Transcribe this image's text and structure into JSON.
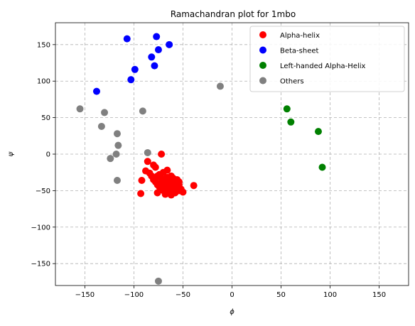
{
  "chart_data": {
    "type": "scatter",
    "title": "Ramachandran plot for 1mbo",
    "xlabel": "ϕ",
    "ylabel": "ψ",
    "xlim": [
      -180,
      180
    ],
    "ylim": [
      -180,
      180
    ],
    "xticks": [
      -150,
      -100,
      -50,
      0,
      50,
      100,
      150
    ],
    "yticks": [
      -150,
      -100,
      -50,
      0,
      50,
      100,
      150
    ],
    "grid": true,
    "legend_position": "top-right",
    "series": [
      {
        "name": "Alpha-helix",
        "color": "#ff0000",
        "points": [
          [
            -72,
            0
          ],
          [
            -86,
            -10
          ],
          [
            -88,
            -23
          ],
          [
            -84,
            -26
          ],
          [
            -80,
            -15
          ],
          [
            -78,
            -18
          ],
          [
            -76,
            -30
          ],
          [
            -74,
            -28
          ],
          [
            -70,
            -25
          ],
          [
            -68,
            -35
          ],
          [
            -66,
            -22
          ],
          [
            -64,
            -38
          ],
          [
            -62,
            -30
          ],
          [
            -60,
            -33
          ],
          [
            -58,
            -40
          ],
          [
            -56,
            -35
          ],
          [
            -54,
            -42
          ],
          [
            -52,
            -48
          ],
          [
            -50,
            -52
          ],
          [
            -80,
            -35
          ],
          [
            -82,
            -30
          ],
          [
            -78,
            -38
          ],
          [
            -76,
            -42
          ],
          [
            -74,
            -45
          ],
          [
            -72,
            -40
          ],
          [
            -70,
            -50
          ],
          [
            -68,
            -44
          ],
          [
            -66,
            -48
          ],
          [
            -64,
            -52
          ],
          [
            -62,
            -46
          ],
          [
            -60,
            -50
          ],
          [
            -58,
            -53
          ],
          [
            -56,
            -47
          ],
          [
            -54,
            -38
          ],
          [
            -72,
            -33
          ],
          [
            -66,
            -32
          ],
          [
            -64,
            -42
          ],
          [
            -60,
            -40
          ],
          [
            -70,
            -38
          ],
          [
            -76,
            -53
          ],
          [
            -92,
            -36
          ],
          [
            -93,
            -54
          ],
          [
            -39,
            -43
          ],
          [
            -68,
            -55
          ],
          [
            -62,
            -56
          ],
          [
            -58,
            -44
          ],
          [
            -54,
            -50
          ]
        ]
      },
      {
        "name": "Beta-sheet",
        "color": "#0000ff",
        "points": [
          [
            -138,
            86
          ],
          [
            -107,
            158
          ],
          [
            -103,
            102
          ],
          [
            -99,
            116
          ],
          [
            -82,
            133
          ],
          [
            -79,
            121
          ],
          [
            -77,
            161
          ],
          [
            -75,
            143
          ],
          [
            -64,
            150
          ]
        ]
      },
      {
        "name": "Left-handed Alpha-Helix",
        "color": "#008000",
        "points": [
          [
            56,
            62
          ],
          [
            60,
            44
          ],
          [
            88,
            31
          ],
          [
            92,
            -18
          ]
        ]
      },
      {
        "name": "Others",
        "color": "#808080",
        "points": [
          [
            -155,
            62
          ],
          [
            -130,
            57
          ],
          [
            -133,
            38
          ],
          [
            -117,
            28
          ],
          [
            -116,
            12
          ],
          [
            -118,
            0
          ],
          [
            -124,
            -6
          ],
          [
            -117,
            -36
          ],
          [
            -91,
            59
          ],
          [
            -86,
            2
          ],
          [
            -75,
            -174
          ],
          [
            -12,
            93
          ]
        ]
      }
    ]
  }
}
